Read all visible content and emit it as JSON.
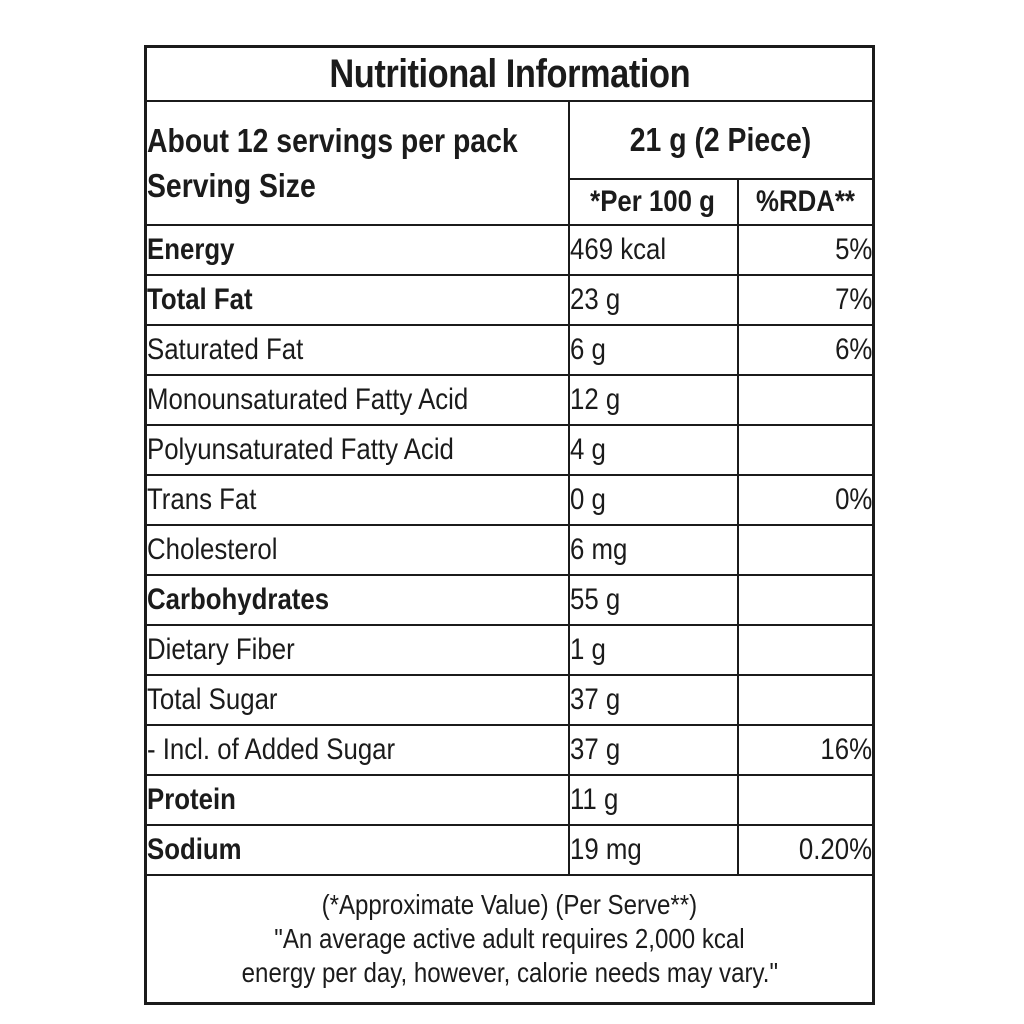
{
  "title": "Nutritional Information",
  "header": {
    "servings_per_pack": "About 12 servings per pack",
    "serving_size_label": "Serving Size",
    "serving_size_value": "21 g (2 Piece)",
    "per_100g_label": "*Per 100 g",
    "rda_label": "%RDA**"
  },
  "rows": [
    {
      "label": "Energy",
      "value": "469 kcal",
      "rda": "5%",
      "level": "main"
    },
    {
      "label": "Total Fat",
      "value": "23 g",
      "rda": "7%",
      "level": "main"
    },
    {
      "label": "Saturated Fat",
      "value": "6 g",
      "rda": "6%",
      "level": "sub"
    },
    {
      "label": "Monounsaturated Fatty Acid",
      "value": "12 g",
      "rda": "",
      "level": "sub"
    },
    {
      "label": "Polyunsaturated Fatty Acid",
      "value": "4 g",
      "rda": "",
      "level": "sub"
    },
    {
      "label": "Trans Fat",
      "value": "0 g",
      "rda": "0%",
      "level": "sub"
    },
    {
      "label": "Cholesterol",
      "value": "6 mg",
      "rda": "",
      "level": "sub"
    },
    {
      "label": "Carbohydrates",
      "value": "55 g",
      "rda": "",
      "level": "main"
    },
    {
      "label": "Dietary Fiber",
      "value": "1 g",
      "rda": "",
      "level": "sub"
    },
    {
      "label": "Total Sugar",
      "value": "37 g",
      "rda": "",
      "level": "sub"
    },
    {
      "label": "- Incl. of Added Sugar",
      "value": "37 g",
      "rda": "16%",
      "level": "sub2"
    },
    {
      "label": "Protein",
      "value": "11 g",
      "rda": "",
      "level": "main"
    },
    {
      "label": "Sodium",
      "value": "19 mg",
      "rda": "0.20%",
      "level": "main"
    }
  ],
  "footnote": {
    "line1": "(*Approximate Value) (Per Serve**)",
    "line2": "\"An average active adult requires 2,000 kcal",
    "line3": "energy per day, however, calorie needs may vary.\""
  },
  "colors": {
    "text": "#1b1b1b",
    "border": "#1b1b1b",
    "background": "#ffffff"
  }
}
